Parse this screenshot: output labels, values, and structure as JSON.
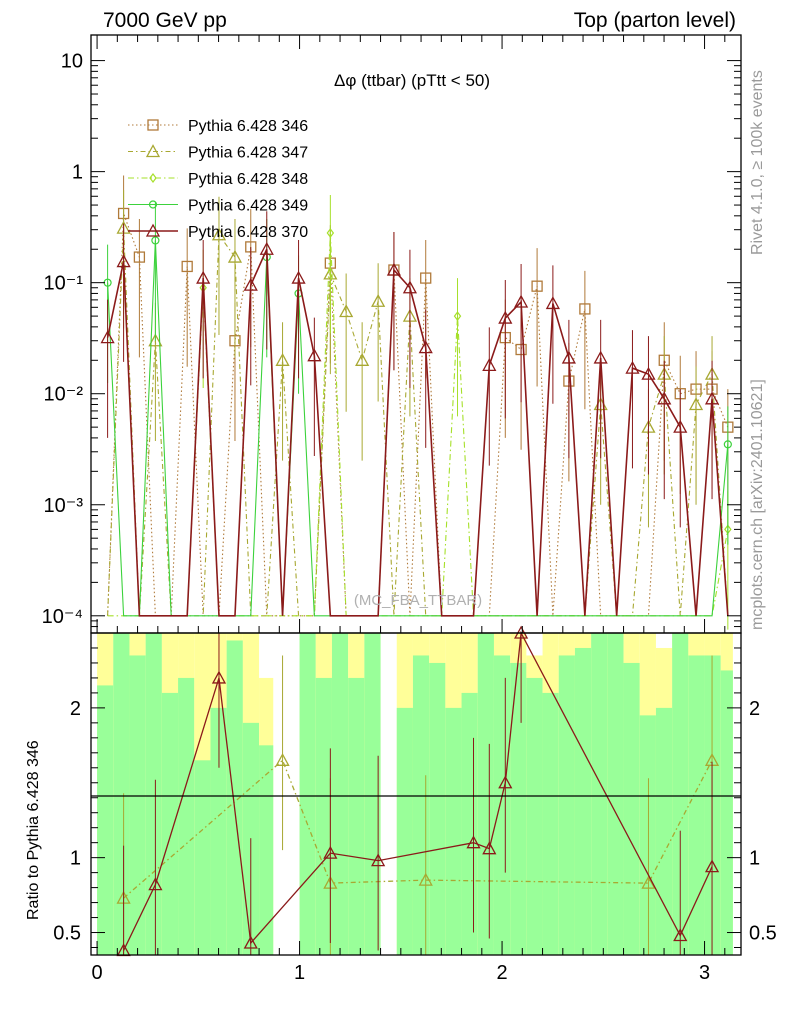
{
  "header": {
    "left": "7000 GeV pp",
    "right": "Top (parton level)"
  },
  "side": {
    "rivet": "Rivet 4.1.0, ≥ 100k events",
    "site": "mcplots.cern.ch [arXiv:2401.10621]"
  },
  "watermark": "(MC_FBA_TTBAR)",
  "colors": {
    "s346": "#b07a3a",
    "s347": "#a8a832",
    "s348": "#a6e02a",
    "s349": "#3cd23c",
    "s370": "#8b1a1a",
    "band_yellow": "#ffff99",
    "band_green": "#99ff99"
  },
  "chart_data": {
    "type": "line",
    "title": "Δφ (ttbar) (pTtt < 50)",
    "xlabel": "",
    "ylabel_ratio": "Ratio to Pythia 6.428 346",
    "xlim": [
      -0.03,
      3.18
    ],
    "ylim_main": [
      7e-05,
      17
    ],
    "ylim_ratio": [
      0.35,
      2.5
    ],
    "log_y_main": true,
    "x_ticks": [
      "0",
      "1",
      "2",
      "3"
    ],
    "y_ticks_main": [
      "10⁻⁴",
      "10⁻³",
      "10⁻²",
      "10⁻¹",
      "1",
      "10"
    ],
    "y_ticks_ratio": [
      "0.5",
      "1",
      "2"
    ],
    "legend_position": "top-left",
    "x": [
      0.052,
      0.131,
      0.209,
      0.288,
      0.366,
      0.445,
      0.524,
      0.602,
      0.681,
      0.759,
      0.838,
      0.916,
      0.995,
      1.073,
      1.152,
      1.23,
      1.309,
      1.388,
      1.466,
      1.545,
      1.623,
      1.702,
      1.78,
      1.859,
      1.937,
      2.016,
      2.094,
      2.173,
      2.251,
      2.33,
      2.409,
      2.487,
      2.566,
      2.644,
      2.723,
      2.801,
      2.88,
      2.958,
      3.037,
      3.115
    ],
    "series": [
      {
        "name": "Pythia 6.428 346",
        "values": [
          0.0001,
          0.42,
          0.17,
          0.0001,
          0.0001,
          0.14,
          0.0001,
          0.0001,
          0.03,
          0.21,
          0.0001,
          0.0001,
          0.0001,
          0.0001,
          0.15,
          0.0001,
          0.0001,
          0.0001,
          0.13,
          0.0001,
          0.11,
          0.0001,
          0.0001,
          0.0001,
          0.0001,
          0.032,
          0.025,
          0.093,
          0.0001,
          0.013,
          0.058,
          0.0001,
          0.0001,
          0.0001,
          0.0001,
          0.02,
          0.01,
          0.011,
          0.011,
          0.005
        ]
      },
      {
        "name": "Pythia 6.428 347",
        "values": [
          0.0001,
          0.31,
          0.0001,
          0.03,
          0.0001,
          0.0001,
          0.0001,
          0.27,
          0.17,
          0.0001,
          0.0001,
          0.02,
          0.0001,
          0.0001,
          0.12,
          0.055,
          0.02,
          0.068,
          0.0001,
          0.05,
          0.0001,
          0.0001,
          0.0001,
          0.0001,
          0.0001,
          0.0001,
          0.0001,
          0.0001,
          0.0001,
          0.0001,
          0.0001,
          0.008,
          0.0001,
          0.0001,
          0.005,
          0.015,
          0.0001,
          0.008,
          0.015,
          0.0001
        ]
      },
      {
        "name": "Pythia 6.428 348",
        "values": [
          0.0001,
          0.0001,
          0.0001,
          0.0001,
          0.0001,
          0.0001,
          0.09,
          0.0001,
          0.0001,
          0.0001,
          0.0001,
          0.0001,
          0.0001,
          0.0001,
          0.28,
          0.0001,
          0.0001,
          0.0001,
          0.0001,
          0.0001,
          0.0001,
          0.0001,
          0.05,
          0.0001,
          0.0001,
          0.0001,
          0.0001,
          0.0001,
          0.0001,
          0.0001,
          0.0001,
          0.0001,
          0.0001,
          0.0001,
          0.0001,
          0.0001,
          0.0001,
          0.0001,
          0.0001,
          0.0006
        ]
      },
      {
        "name": "Pythia 6.428 349",
        "values": [
          0.1,
          0.0001,
          0.0001,
          0.24,
          0.0001,
          0.0001,
          0.0001,
          0.0001,
          0.0001,
          0.0001,
          0.17,
          0.0001,
          0.08,
          0.0001,
          0.0001,
          0.0001,
          0.0001,
          0.0001,
          0.0001,
          0.0001,
          0.0001,
          0.0001,
          0.0001,
          0.0001,
          0.0001,
          0.0001,
          0.0001,
          0.0001,
          0.0001,
          0.0001,
          0.0001,
          0.0001,
          0.0001,
          0.0001,
          0.0001,
          0.0001,
          0.0001,
          0.0001,
          0.0001,
          0.0035
        ]
      },
      {
        "name": "Pythia 6.428 370",
        "values": [
          0.032,
          0.155,
          0.0001,
          0.0001,
          0.0001,
          0.0001,
          0.11,
          0.0001,
          0.0001,
          0.095,
          0.2,
          0.0001,
          0.11,
          0.022,
          0.0001,
          0.0001,
          0.0001,
          0.0001,
          0.13,
          0.09,
          0.026,
          0.0001,
          0.0001,
          0.0001,
          0.018,
          0.048,
          0.067,
          0.0001,
          0.065,
          0.021,
          0.0001,
          0.021,
          0.0001,
          0.017,
          0.015,
          0.009,
          0.005,
          0.0001,
          0.009,
          0.0001
        ]
      }
    ],
    "ratio_series": [
      {
        "name": "Pythia 6.428 347",
        "values": [
          null,
          0.73,
          null,
          null,
          null,
          null,
          null,
          null,
          null,
          null,
          null,
          1.65,
          null,
          null,
          0.83,
          null,
          null,
          null,
          null,
          null,
          0.85,
          null,
          null,
          null,
          null,
          null,
          null,
          null,
          null,
          null,
          null,
          null,
          null,
          null,
          0.83,
          null,
          null,
          null,
          1.65,
          null
        ]
      },
      {
        "name": "Pythia 6.428 370",
        "values": [
          null,
          0.38,
          null,
          0.82,
          null,
          null,
          null,
          2.2,
          null,
          0.43,
          null,
          null,
          null,
          null,
          1.03,
          null,
          null,
          0.98,
          null,
          null,
          null,
          null,
          null,
          1.1,
          1.06,
          1.5,
          2.5,
          null,
          null,
          null,
          null,
          null,
          null,
          null,
          null,
          null,
          0.48,
          null,
          0.94,
          null
        ]
      }
    ],
    "ratio_bands": [
      {
        "x0": 0.0,
        "x1": 0.08,
        "yellow": [
          0.35,
          2.5
        ],
        "green": [
          0.35,
          2.15
        ]
      },
      {
        "x0": 0.08,
        "x1": 0.16,
        "yellow": [
          0.35,
          2.5
        ],
        "green": [
          0.35,
          2.5
        ]
      },
      {
        "x0": 0.16,
        "x1": 0.24,
        "yellow": [
          0.35,
          2.5
        ],
        "green": [
          0.35,
          2.35
        ]
      },
      {
        "x0": 0.24,
        "x1": 0.32,
        "yellow": [
          0.35,
          2.5
        ],
        "green": [
          0.35,
          2.5
        ]
      },
      {
        "x0": 0.32,
        "x1": 0.4,
        "yellow": [
          0.35,
          2.5
        ],
        "green": [
          0.35,
          2.1
        ]
      },
      {
        "x0": 0.4,
        "x1": 0.48,
        "yellow": [
          0.35,
          2.5
        ],
        "green": [
          0.35,
          2.2
        ]
      },
      {
        "x0": 0.48,
        "x1": 0.56,
        "yellow": [
          0.35,
          2.5
        ],
        "green": [
          0.35,
          1.65
        ]
      },
      {
        "x0": 0.56,
        "x1": 0.64,
        "yellow": [
          0.35,
          2.5
        ],
        "green": [
          0.35,
          2.0
        ]
      },
      {
        "x0": 0.64,
        "x1": 0.72,
        "yellow": [
          0.35,
          2.5
        ],
        "green": [
          0.35,
          2.45
        ]
      },
      {
        "x0": 0.72,
        "x1": 0.8,
        "yellow": [
          0.35,
          2.5
        ],
        "green": [
          0.35,
          1.9
        ]
      },
      {
        "x0": 0.8,
        "x1": 0.87,
        "yellow": [
          0.35,
          2.2
        ],
        "green": [
          0.35,
          1.75
        ]
      },
      {
        "x0": 1.0,
        "x1": 1.08,
        "yellow": [
          0.35,
          2.5
        ],
        "green": [
          0.35,
          2.5
        ]
      },
      {
        "x0": 1.08,
        "x1": 1.16,
        "yellow": [
          0.35,
          2.5
        ],
        "green": [
          0.35,
          2.2
        ]
      },
      {
        "x0": 1.16,
        "x1": 1.24,
        "yellow": [
          0.35,
          2.5
        ],
        "green": [
          0.35,
          2.5
        ]
      },
      {
        "x0": 1.24,
        "x1": 1.32,
        "yellow": [
          0.35,
          2.5
        ],
        "green": [
          0.35,
          2.2
        ]
      },
      {
        "x0": 1.32,
        "x1": 1.4,
        "yellow": [
          0.35,
          2.5
        ],
        "green": [
          0.35,
          2.5
        ]
      },
      {
        "x0": 1.48,
        "x1": 1.56,
        "yellow": [
          0.35,
          2.5
        ],
        "green": [
          0.35,
          2.0
        ]
      },
      {
        "x0": 1.56,
        "x1": 1.64,
        "yellow": [
          0.35,
          2.5
        ],
        "green": [
          0.35,
          2.35
        ]
      },
      {
        "x0": 1.64,
        "x1": 1.72,
        "yellow": [
          0.35,
          2.5
        ],
        "green": [
          0.35,
          2.3
        ]
      },
      {
        "x0": 1.72,
        "x1": 1.8,
        "yellow": [
          0.35,
          2.5
        ],
        "green": [
          0.35,
          2.0
        ]
      },
      {
        "x0": 1.8,
        "x1": 1.88,
        "yellow": [
          0.35,
          2.5
        ],
        "green": [
          0.35,
          2.1
        ]
      },
      {
        "x0": 1.88,
        "x1": 1.96,
        "yellow": [
          0.35,
          2.5
        ],
        "green": [
          0.35,
          2.5
        ]
      },
      {
        "x0": 1.96,
        "x1": 2.04,
        "yellow": [
          0.35,
          2.5
        ],
        "green": [
          0.35,
          2.35
        ]
      },
      {
        "x0": 2.04,
        "x1": 2.12,
        "yellow": [
          0.35,
          2.5
        ],
        "green": [
          0.35,
          2.3
        ]
      },
      {
        "x0": 2.12,
        "x1": 2.2,
        "yellow": [
          0.35,
          2.35
        ],
        "green": [
          0.35,
          2.2
        ]
      },
      {
        "x0": 2.2,
        "x1": 2.28,
        "yellow": [
          0.35,
          2.5
        ],
        "green": [
          0.35,
          2.1
        ]
      },
      {
        "x0": 2.28,
        "x1": 2.36,
        "yellow": [
          0.35,
          2.5
        ],
        "green": [
          0.35,
          2.35
        ]
      },
      {
        "x0": 2.36,
        "x1": 2.44,
        "yellow": [
          0.35,
          2.5
        ],
        "green": [
          0.35,
          2.4
        ]
      },
      {
        "x0": 2.44,
        "x1": 2.52,
        "yellow": [
          0.35,
          2.5
        ],
        "green": [
          0.35,
          2.5
        ]
      },
      {
        "x0": 2.52,
        "x1": 2.6,
        "yellow": [
          0.35,
          2.5
        ],
        "green": [
          0.35,
          2.5
        ]
      },
      {
        "x0": 2.6,
        "x1": 2.68,
        "yellow": [
          0.35,
          2.5
        ],
        "green": [
          0.35,
          2.3
        ]
      },
      {
        "x0": 2.68,
        "x1": 2.76,
        "yellow": [
          0.35,
          2.5
        ],
        "green": [
          0.35,
          1.95
        ]
      },
      {
        "x0": 2.76,
        "x1": 2.84,
        "yellow": [
          0.35,
          2.4
        ],
        "green": [
          0.35,
          2.0
        ]
      },
      {
        "x0": 2.84,
        "x1": 2.92,
        "yellow": [
          0.35,
          2.5
        ],
        "green": [
          0.35,
          2.5
        ]
      },
      {
        "x0": 2.92,
        "x1": 3.0,
        "yellow": [
          0.35,
          2.5
        ],
        "green": [
          0.35,
          2.35
        ]
      },
      {
        "x0": 3.0,
        "x1": 3.08,
        "yellow": [
          0.35,
          2.5
        ],
        "green": [
          0.35,
          2.35
        ]
      },
      {
        "x0": 3.08,
        "x1": 3.14,
        "yellow": [
          0.35,
          2.5
        ],
        "green": [
          0.35,
          2.25
        ]
      }
    ]
  }
}
